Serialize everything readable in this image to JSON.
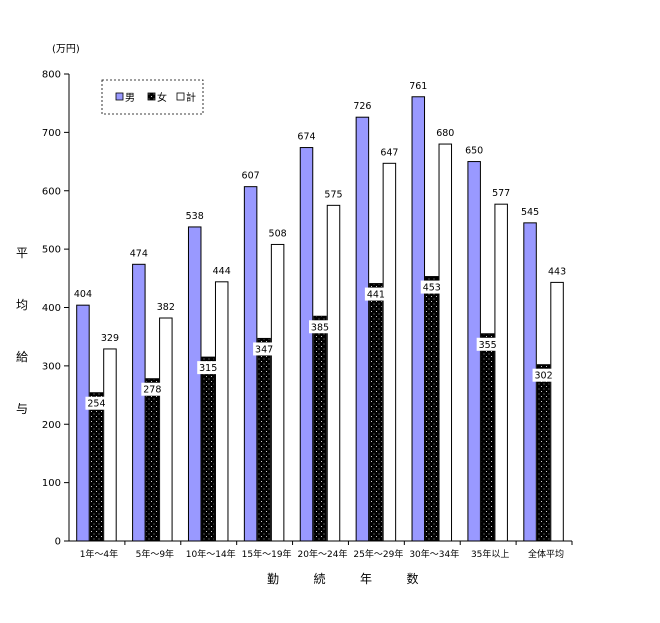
{
  "chart_data": {
    "type": "bar",
    "unit": "(万円)",
    "ylabel": "平均給与",
    "xlabel": "勤続年数",
    "ylim": [
      0,
      800
    ],
    "yticks": [
      0,
      100,
      200,
      300,
      400,
      500,
      600,
      700,
      800
    ],
    "grid": false,
    "legend_position": "top-left",
    "categories": [
      "1年～4年",
      "5年～9年",
      "10年～14年",
      "15年～19年",
      "20年～24年",
      "25年～29年",
      "30年～34年",
      "35年以上",
      "全体平均"
    ],
    "series": [
      {
        "name": "男",
        "values": [
          404,
          474,
          538,
          607,
          674,
          726,
          761,
          650,
          545
        ],
        "color": "#9999ff",
        "pattern": "solid"
      },
      {
        "name": "女",
        "values": [
          254,
          278,
          315,
          347,
          385,
          441,
          453,
          355,
          302
        ],
        "color": "#000000",
        "pattern": "dotted"
      },
      {
        "name": "計",
        "values": [
          329,
          382,
          444,
          508,
          575,
          647,
          680,
          577,
          443
        ],
        "color": "#ffffff",
        "pattern": "solid"
      }
    ]
  }
}
